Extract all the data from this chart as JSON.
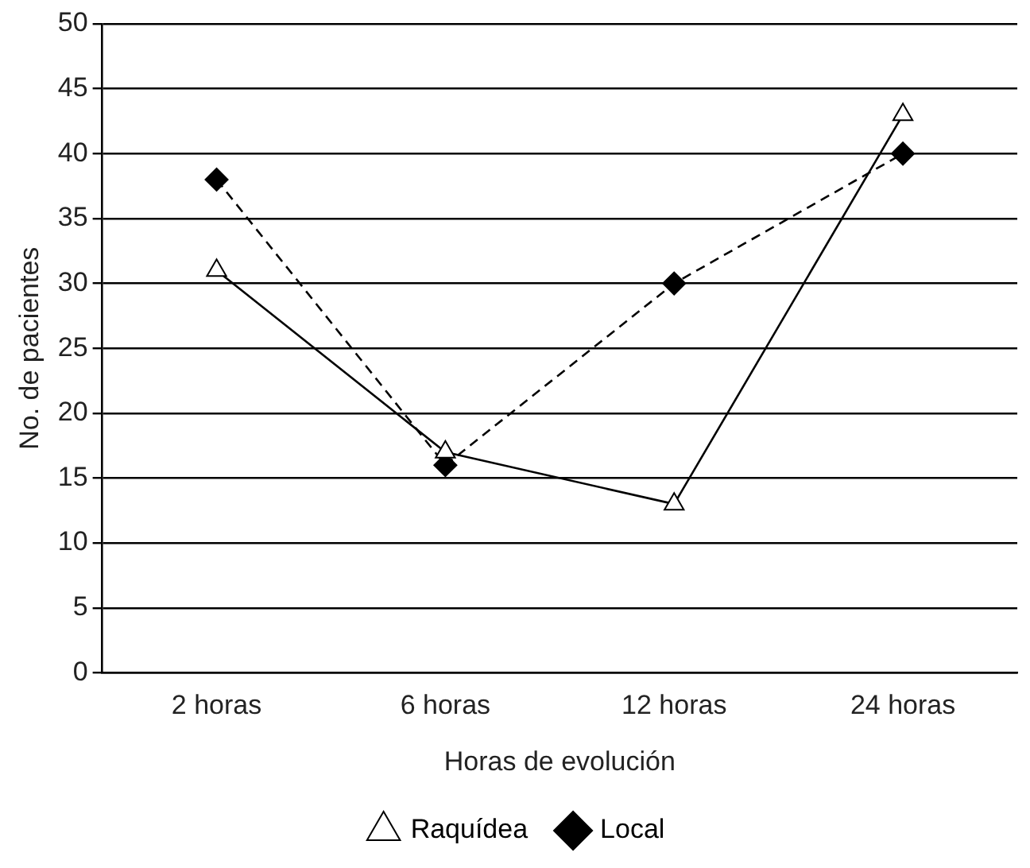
{
  "chart_data": {
    "type": "line",
    "xlabel": "Horas de evolución",
    "ylabel": "No. de pacientes",
    "categories": [
      "2 horas",
      "6 horas",
      "12 horas",
      "24 horas"
    ],
    "series": [
      {
        "name": "Raquídea",
        "color": "#000000",
        "values": [
          31,
          17,
          13,
          43
        ],
        "marker": "triangle",
        "line_style": "solid"
      },
      {
        "name": "Local",
        "color": "#000000",
        "values": [
          38,
          16,
          30,
          40
        ],
        "marker": "diamond",
        "line_style": "dashed"
      }
    ],
    "ylim": [
      0,
      50
    ],
    "yticks": [
      0,
      5,
      10,
      15,
      20,
      25,
      30,
      35,
      40,
      45,
      50
    ],
    "grid": "y",
    "legend": "bottom"
  }
}
